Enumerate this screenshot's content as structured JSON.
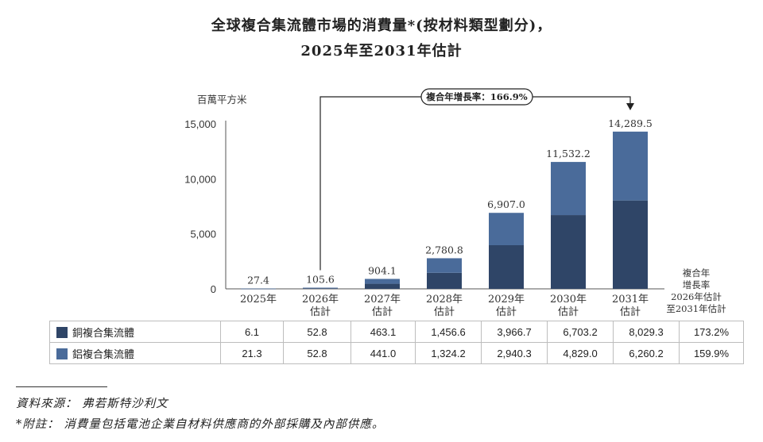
{
  "title_line1": "全球複合集流體市場的消費量*(按材料類型劃分)，",
  "title_line2": "2025年至2031年估計",
  "chart_data": {
    "type": "bar",
    "stacked": true,
    "unit_label": "百萬平方米",
    "ylim": [
      0,
      15000
    ],
    "yticks": [
      "0",
      "5,000",
      "10,000",
      "15,000"
    ],
    "categories": [
      [
        "2025年"
      ],
      [
        "2026年",
        "估計"
      ],
      [
        "2027年",
        "估計"
      ],
      [
        "2028年",
        "估計"
      ],
      [
        "2029年",
        "估計"
      ],
      [
        "2030年",
        "估計"
      ],
      [
        "2031年",
        "估計"
      ]
    ],
    "series": [
      {
        "name": "銅複合集流體",
        "color": "#2f4567",
        "values": [
          6.1,
          52.8,
          463.1,
          1456.6,
          3966.7,
          6703.2,
          8029.3
        ],
        "labels": [
          "6.1",
          "52.8",
          "463.1",
          "1,456.6",
          "3,966.7",
          "6,703.2",
          "8,029.3"
        ],
        "cagr": "173.2%"
      },
      {
        "name": "鋁複合集流體",
        "color": "#4a6b9a",
        "values": [
          21.3,
          52.8,
          441.0,
          1324.2,
          2940.3,
          4829.0,
          6260.2
        ],
        "labels": [
          "21.3",
          "52.8",
          "441.0",
          "1,324.2",
          "2,940.3",
          "4,829.0",
          "6,260.2"
        ],
        "cagr": "159.9%"
      }
    ],
    "totals": [
      "27.4",
      "105.6",
      "904.1",
      "2,780.8",
      "6,907.0",
      "11,532.2",
      "14,289.5"
    ],
    "cagr_box": "複合年增長率：166.9%",
    "cagr_header": [
      "複合年",
      "增長率",
      "2026年估計",
      "至2031年估計"
    ]
  },
  "footnote_source": "資料來源：  弗若斯特沙利文",
  "footnote_note": "*附註：  消費量包括電池企業自材料供應商的外部採購及內部供應。"
}
